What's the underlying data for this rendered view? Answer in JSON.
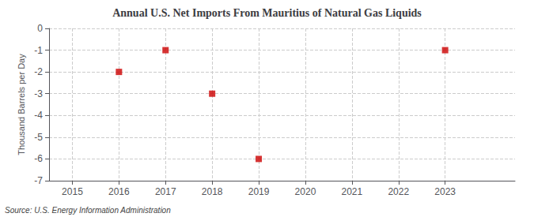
{
  "chart_data": {
    "type": "scatter",
    "title": "Annual U.S. Net Imports From Mauritius of Natural Gas Liquids",
    "ylabel": "Thousand Barrels per Day",
    "source": "Source: U.S. Energy Information Administration",
    "x": [
      2016,
      2017,
      2018,
      2019,
      2023
    ],
    "values": [
      -2,
      -1,
      -3,
      -6,
      -1
    ],
    "color": "#cc0000",
    "marker": "square",
    "xlim": [
      2014.5,
      2024.5
    ],
    "xticks": [
      2015,
      2016,
      2017,
      2018,
      2019,
      2020,
      2021,
      2022,
      2023
    ],
    "ylim": [
      -7,
      0
    ],
    "yticks": [
      0,
      -1,
      -2,
      -3,
      -4,
      -5,
      -6,
      -7
    ],
    "grid": true
  }
}
